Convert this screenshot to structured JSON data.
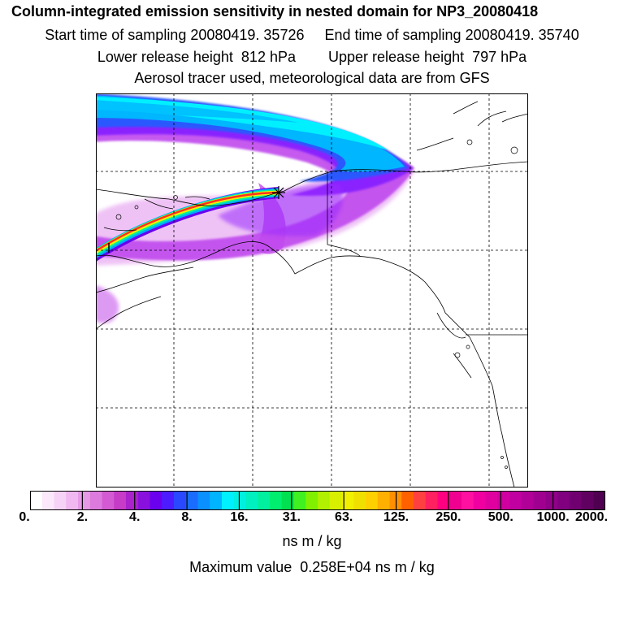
{
  "header": {
    "title": "Column-integrated emission sensitivity in nested domain for NP3_20080418",
    "line2": "Start time of sampling 20080419. 35726     End time of sampling 20080419. 35740",
    "line3": "Lower release height  812 hPa        Upper release height  797 hPa",
    "line4": "Aerosol tracer used, meteorological data are from GFS"
  },
  "colorbar": {
    "labels": [
      "0.",
      "2.",
      "4.",
      "8.",
      "16.",
      "31.",
      "63.",
      "125.",
      "250.",
      "500.",
      "1000.",
      "2000."
    ],
    "units": "ns m / kg",
    "colors": [
      "#ffffff",
      "#fbe8fb",
      "#f6d2f6",
      "#f0b8f0",
      "#e69ae6",
      "#dd7add",
      "#d35ad3",
      "#c63cc6",
      "#aa22cc",
      "#8a11dd",
      "#6a00ee",
      "#4c1cff",
      "#2a48ff",
      "#1a6cff",
      "#0a90ff",
      "#00b4ff",
      "#00f0ff",
      "#00f0e0",
      "#00f0c0",
      "#00f0a0",
      "#00ee70",
      "#00e050",
      "#40f020",
      "#80f000",
      "#b0f000",
      "#d8f000",
      "#f0f000",
      "#f0e000",
      "#ffd000",
      "#ffb000",
      "#ff9000",
      "#ff6000",
      "#ff4040",
      "#ff2060",
      "#ff0080",
      "#f00090",
      "#ff10a0",
      "#f000a0",
      "#e000a0",
      "#d000a0",
      "#c000a0",
      "#b00098",
      "#a00090",
      "#900088",
      "#800080",
      "#700070",
      "#600060",
      "#500050"
    ]
  },
  "max_value": "Maximum value  0.258E+04 ns m / kg",
  "map": {
    "receptor_marker": "receptor-star-icon",
    "palette": {
      "purple": "#b000f0",
      "violet": "#7a20ff",
      "blue": "#2060ff",
      "lightblue": "#00a8ff",
      "cyan": "#00f0ff",
      "magenta": "#cc00ff",
      "pink": "#f0b8f0"
    }
  }
}
